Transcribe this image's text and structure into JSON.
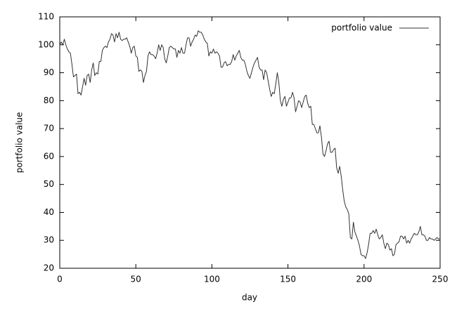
{
  "chart_data": {
    "type": "line",
    "xlabel": "day",
    "ylabel": "portfolio value",
    "xlim": [
      0,
      250
    ],
    "xticks": [
      0,
      50,
      100,
      150,
      200,
      250
    ],
    "ylim": [
      20,
      110
    ],
    "yticks": [
      20,
      30,
      40,
      50,
      60,
      70,
      80,
      90,
      100,
      110
    ],
    "legend": "top-right",
    "x": [
      0,
      1,
      2,
      3,
      4,
      5,
      6,
      7,
      8,
      9,
      10,
      11,
      12,
      13,
      14,
      15,
      16,
      17,
      18,
      19,
      20,
      21,
      22,
      23,
      24,
      25,
      26,
      27,
      28,
      29,
      30,
      31,
      32,
      33,
      34,
      35,
      36,
      37,
      38,
      39,
      40,
      41,
      42,
      43,
      44,
      45,
      46,
      47,
      48,
      49,
      50,
      51,
      52,
      53,
      54,
      55,
      56,
      57,
      58,
      59,
      60,
      61,
      62,
      63,
      64,
      65,
      66,
      67,
      68,
      69,
      70,
      71,
      72,
      73,
      74,
      75,
      76,
      77,
      78,
      79,
      80,
      81,
      82,
      83,
      84,
      85,
      86,
      87,
      88,
      89,
      90,
      91,
      92,
      93,
      94,
      95,
      96,
      97,
      98,
      99,
      100,
      101,
      102,
      103,
      104,
      105,
      106,
      107,
      108,
      109,
      110,
      111,
      112,
      113,
      114,
      115,
      116,
      117,
      118,
      119,
      120,
      121,
      122,
      123,
      124,
      125,
      126,
      127,
      128,
      129,
      130,
      131,
      132,
      133,
      134,
      135,
      136,
      137,
      138,
      139,
      140,
      141,
      142,
      143,
      144,
      145,
      146,
      147,
      148,
      149,
      150,
      151,
      152,
      153,
      154,
      155,
      156,
      157,
      158,
      159,
      160,
      161,
      162,
      163,
      164,
      165,
      166,
      167,
      168,
      169,
      170,
      171,
      172,
      173,
      174,
      175,
      176,
      177,
      178,
      179,
      180,
      181,
      182,
      183,
      184,
      185,
      186,
      187,
      188,
      189,
      190,
      191,
      192,
      193,
      194,
      195,
      196,
      197,
      198,
      199,
      200,
      201,
      202,
      203,
      204,
      205,
      206,
      207,
      208,
      209,
      210,
      211,
      212,
      213,
      214,
      215,
      216,
      217,
      218,
      219,
      220,
      221,
      222,
      223,
      224,
      225,
      226,
      227,
      228,
      229,
      230,
      231,
      232,
      233,
      234,
      235,
      236,
      237,
      238,
      239,
      240,
      241,
      242,
      243,
      244,
      245,
      246,
      247,
      248,
      249,
      250
    ],
    "series": [
      {
        "name": "portfolio value",
        "color": "#333333",
        "values": [
          100,
          101,
          100,
          102,
          100,
          98.5,
          97.5,
          97,
          93,
          88.5,
          89,
          89.5,
          82.5,
          83,
          82,
          85,
          88,
          85.5,
          89,
          89.5,
          86.5,
          91,
          93.5,
          89,
          90,
          89.5,
          94,
          94,
          98,
          99,
          99.5,
          99,
          101,
          102,
          104,
          103.5,
          101,
          104,
          102.5,
          104.5,
          102,
          101.5,
          102,
          102,
          102.5,
          101,
          99.5,
          97,
          99,
          99.5,
          96,
          95.5,
          90.5,
          91,
          90.5,
          86.5,
          89,
          90.5,
          96,
          97.5,
          96.5,
          96.5,
          96,
          95,
          97,
          100,
          98,
          100,
          99,
          95,
          93.5,
          96,
          99,
          99.5,
          99,
          98.5,
          98.5,
          95.5,
          98,
          97,
          99,
          97,
          97,
          100,
          102.5,
          102.5,
          99.5,
          101,
          102,
          103.5,
          103,
          105,
          104.5,
          104.5,
          103.5,
          102,
          101,
          100.5,
          96,
          97.5,
          97,
          98.5,
          97,
          97.5,
          97,
          96,
          92,
          92,
          93.5,
          94,
          92.5,
          93,
          93,
          94,
          96.5,
          94.5,
          96,
          97,
          98,
          95.5,
          94.5,
          94.5,
          93,
          90.5,
          89,
          88,
          90,
          92,
          93.5,
          94.5,
          95.5,
          92,
          91,
          91,
          87.5,
          91,
          90,
          87,
          84,
          81.5,
          83,
          82.5,
          86,
          90,
          86.5,
          80,
          78,
          80.5,
          81.5,
          78,
          79.5,
          81,
          81,
          83,
          81,
          76,
          78,
          80,
          79.5,
          77.5,
          79.5,
          81.5,
          82,
          79,
          77.5,
          78,
          71.5,
          71.5,
          70,
          68.5,
          68.5,
          71,
          67,
          61,
          60,
          62,
          64.5,
          65.5,
          61.5,
          61.5,
          62.5,
          63,
          56,
          54,
          56.5,
          53,
          48,
          44,
          42,
          41,
          39.5,
          31,
          30.5,
          36.5,
          33,
          31.5,
          30,
          28,
          25,
          24.5,
          24.5,
          23.5,
          25.5,
          28.5,
          32.5,
          32.5,
          33.5,
          32.5,
          34,
          32,
          30.5,
          31,
          32,
          29,
          27,
          29,
          28.5,
          26.5,
          27,
          24.5,
          25,
          28.5,
          29,
          29.5,
          31.5,
          31.5,
          30.5,
          31.5,
          29,
          30,
          29,
          30.5,
          31.5,
          32.5,
          32,
          32,
          33,
          35,
          32,
          32,
          31.5,
          30,
          30,
          31,
          30.5,
          30.5,
          30,
          30.5,
          31,
          30.5,
          30.5
        ]
      }
    ]
  }
}
